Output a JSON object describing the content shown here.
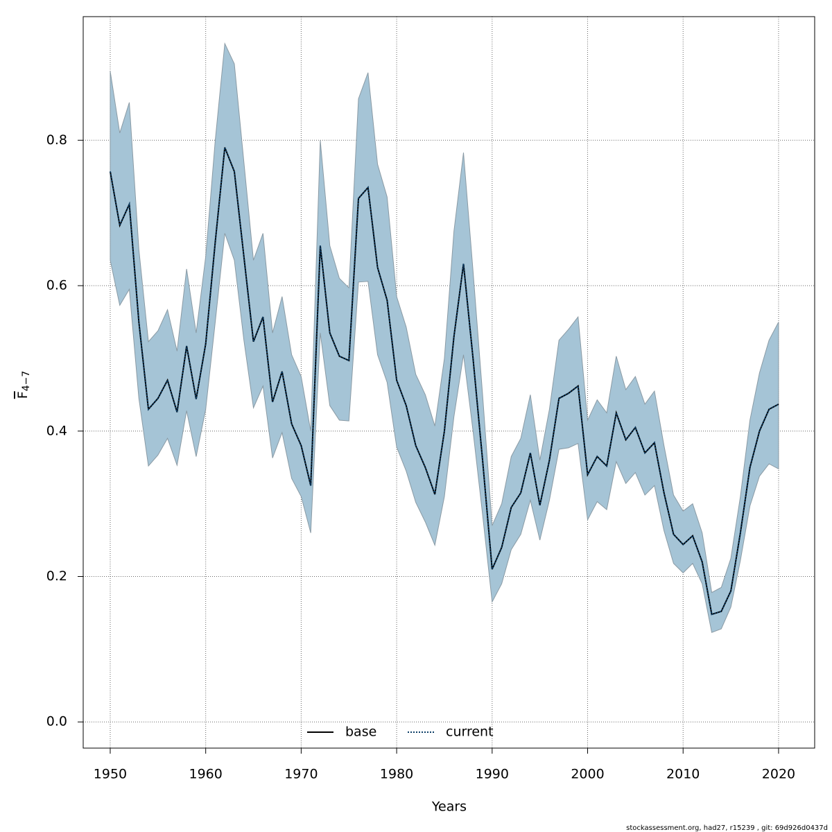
{
  "chart_data": {
    "type": "line",
    "x_label": "Years",
    "y_label": "F",
    "y_label_sub": "4−7",
    "footer": "stockassessment.org, had27, r15239 , git: 69d926d0437d",
    "x": [
      1950,
      1951,
      1952,
      1953,
      1954,
      1955,
      1956,
      1957,
      1958,
      1959,
      1960,
      1961,
      1962,
      1963,
      1964,
      1965,
      1966,
      1967,
      1968,
      1969,
      1970,
      1971,
      1972,
      1973,
      1974,
      1975,
      1976,
      1977,
      1978,
      1979,
      1980,
      1981,
      1982,
      1983,
      1984,
      1985,
      1986,
      1987,
      1988,
      1989,
      1990,
      1991,
      1992,
      1993,
      1994,
      1995,
      1996,
      1997,
      1998,
      1999,
      2000,
      2001,
      2002,
      2003,
      2004,
      2005,
      2006,
      2007,
      2008,
      2009,
      2010,
      2011,
      2012,
      2013,
      2014,
      2015,
      2016,
      2017,
      2018,
      2019,
      2020
    ],
    "series": [
      {
        "name": "base",
        "color": "#000000",
        "linestyle": "solid",
        "values": [
          0.757,
          0.683,
          0.712,
          0.55,
          0.43,
          0.445,
          0.47,
          0.426,
          0.517,
          0.444,
          0.52,
          0.66,
          0.79,
          0.757,
          0.64,
          0.523,
          0.557,
          0.44,
          0.482,
          0.41,
          0.38,
          0.325,
          0.655,
          0.535,
          0.503,
          0.497,
          0.72,
          0.735,
          0.625,
          0.58,
          0.47,
          0.435,
          0.38,
          0.35,
          0.313,
          0.4,
          0.53,
          0.63,
          0.5,
          0.36,
          0.21,
          0.24,
          0.295,
          0.315,
          0.37,
          0.298,
          0.36,
          0.445,
          0.452,
          0.462,
          0.34,
          0.365,
          0.352,
          0.425,
          0.388,
          0.405,
          0.37,
          0.384,
          0.315,
          0.258,
          0.244,
          0.256,
          0.22,
          0.148,
          0.152,
          0.18,
          0.26,
          0.35,
          0.4,
          0.43,
          0.437
        ]
      },
      {
        "name": "current",
        "color": "#0b3d66",
        "linestyle": "dotted",
        "values": [
          0.757,
          0.683,
          0.712,
          0.55,
          0.43,
          0.445,
          0.47,
          0.426,
          0.517,
          0.444,
          0.52,
          0.66,
          0.79,
          0.757,
          0.64,
          0.523,
          0.557,
          0.44,
          0.482,
          0.41,
          0.38,
          0.325,
          0.655,
          0.535,
          0.503,
          0.497,
          0.72,
          0.735,
          0.625,
          0.58,
          0.47,
          0.435,
          0.38,
          0.35,
          0.313,
          0.4,
          0.53,
          0.63,
          0.5,
          0.36,
          0.21,
          0.24,
          0.295,
          0.315,
          0.37,
          0.298,
          0.36,
          0.445,
          0.452,
          0.462,
          0.34,
          0.365,
          0.352,
          0.425,
          0.388,
          0.405,
          0.37,
          0.384,
          0.315,
          0.258,
          0.244,
          0.256,
          0.22,
          0.148,
          0.152,
          0.18,
          0.26,
          0.35,
          0.4,
          0.43,
          0.437
        ]
      }
    ],
    "band": {
      "color": "#a5c4d6",
      "upper": [
        0.895,
        0.81,
        0.852,
        0.65,
        0.523,
        0.538,
        0.567,
        0.51,
        0.623,
        0.535,
        0.64,
        0.8,
        0.933,
        0.905,
        0.77,
        0.635,
        0.672,
        0.535,
        0.585,
        0.505,
        0.475,
        0.4,
        0.8,
        0.655,
        0.61,
        0.597,
        0.857,
        0.893,
        0.767,
        0.722,
        0.585,
        0.543,
        0.478,
        0.45,
        0.407,
        0.5,
        0.675,
        0.783,
        0.62,
        0.45,
        0.27,
        0.3,
        0.365,
        0.39,
        0.45,
        0.36,
        0.43,
        0.525,
        0.54,
        0.557,
        0.415,
        0.443,
        0.425,
        0.503,
        0.457,
        0.475,
        0.437,
        0.455,
        0.38,
        0.312,
        0.29,
        0.3,
        0.26,
        0.178,
        0.185,
        0.225,
        0.31,
        0.415,
        0.48,
        0.525,
        0.55
      ],
      "lower": [
        0.635,
        0.573,
        0.595,
        0.445,
        0.352,
        0.367,
        0.39,
        0.353,
        0.428,
        0.365,
        0.43,
        0.55,
        0.672,
        0.635,
        0.525,
        0.432,
        0.462,
        0.363,
        0.398,
        0.335,
        0.31,
        0.26,
        0.535,
        0.435,
        0.415,
        0.414,
        0.605,
        0.606,
        0.505,
        0.467,
        0.378,
        0.345,
        0.302,
        0.275,
        0.243,
        0.31,
        0.42,
        0.505,
        0.4,
        0.285,
        0.165,
        0.19,
        0.237,
        0.258,
        0.305,
        0.25,
        0.305,
        0.375,
        0.377,
        0.383,
        0.278,
        0.303,
        0.292,
        0.358,
        0.328,
        0.343,
        0.312,
        0.325,
        0.263,
        0.218,
        0.205,
        0.218,
        0.19,
        0.123,
        0.128,
        0.158,
        0.222,
        0.297,
        0.338,
        0.355,
        0.348
      ]
    },
    "xlim": [
      1947.17,
      2023.78
    ],
    "ylim": [
      -0.036,
      0.97
    ],
    "xticks": [
      1950,
      1960,
      1970,
      1980,
      1990,
      2000,
      2010,
      2020
    ],
    "yticks": [
      {
        "value": 0,
        "label": "0.0"
      },
      0.2,
      0.4,
      0.6,
      0.8
    ],
    "grid": true,
    "legend": "bottom"
  }
}
